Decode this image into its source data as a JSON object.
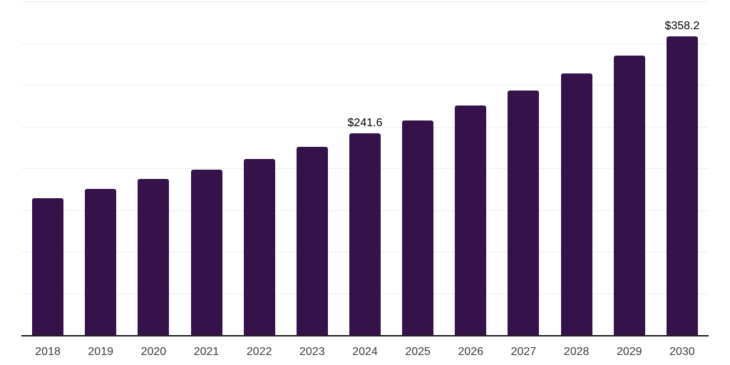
{
  "chart_data": {
    "type": "bar",
    "title": "",
    "xlabel": "",
    "ylabel": "",
    "categories": [
      "2018",
      "2019",
      "2020",
      "2021",
      "2022",
      "2023",
      "2024",
      "2025",
      "2026",
      "2027",
      "2028",
      "2029",
      "2030"
    ],
    "values": [
      164.5,
      175.1,
      186.8,
      198.5,
      211.5,
      225.8,
      241.6,
      257.5,
      275.0,
      293.4,
      313.5,
      335.0,
      358.2
    ],
    "data_labels": {
      "2024": "$241.6",
      "2030": "$358.2"
    },
    "ylim": [
      0,
      400
    ],
    "gridline_interval": 50,
    "grid": true,
    "legend": "none",
    "y_tick_labels_visible": false,
    "colors": {
      "bar": "#36124B",
      "gridline": "#efefef",
      "axis_line": "#212121",
      "tick_label": "#3c3c3c",
      "data_label": "#000000",
      "background": "#ffffff"
    }
  }
}
